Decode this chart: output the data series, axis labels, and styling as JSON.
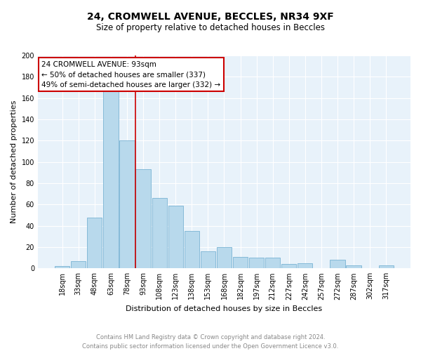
{
  "title": "24, CROMWELL AVENUE, BECCLES, NR34 9XF",
  "subtitle": "Size of property relative to detached houses in Beccles",
  "xlabel": "Distribution of detached houses by size in Beccles",
  "ylabel": "Number of detached properties",
  "footnote1": "Contains HM Land Registry data © Crown copyright and database right 2024.",
  "footnote2": "Contains public sector information licensed under the Open Government Licence v3.0.",
  "bin_labels": [
    "18sqm",
    "33sqm",
    "48sqm",
    "63sqm",
    "78sqm",
    "93sqm",
    "108sqm",
    "123sqm",
    "138sqm",
    "153sqm",
    "168sqm",
    "182sqm",
    "197sqm",
    "212sqm",
    "227sqm",
    "242sqm",
    "257sqm",
    "272sqm",
    "287sqm",
    "302sqm",
    "317sqm"
  ],
  "bar_heights": [
    2,
    7,
    48,
    167,
    120,
    93,
    66,
    59,
    35,
    16,
    20,
    11,
    10,
    10,
    4,
    5,
    0,
    8,
    3,
    0,
    3
  ],
  "bar_color": "#b8d9ec",
  "bar_edge_color": "#7ab3d4",
  "background_color": "#e8f2fa",
  "grid_color": "#ffffff",
  "ref_line_color": "#cc0000",
  "annotation_text": "24 CROMWELL AVENUE: 93sqm\n← 50% of detached houses are smaller (337)\n49% of semi-detached houses are larger (332) →",
  "annotation_box_color": "#ffffff",
  "annotation_box_edge_color": "#cc0000",
  "ylim": [
    0,
    200
  ],
  "yticks": [
    0,
    20,
    40,
    60,
    80,
    100,
    120,
    140,
    160,
    180,
    200
  ],
  "title_fontsize": 10,
  "subtitle_fontsize": 8.5,
  "ylabel_fontsize": 8,
  "xlabel_fontsize": 8,
  "tick_fontsize": 7,
  "footnote_fontsize": 6,
  "annotation_fontsize": 7.5
}
